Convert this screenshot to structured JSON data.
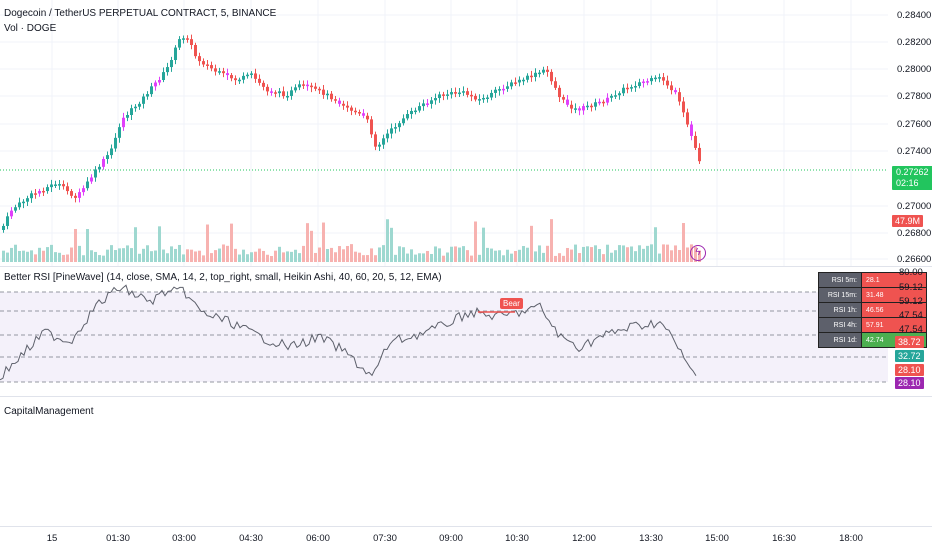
{
  "legend": {
    "symbol": "Dogecoin / TetherUS PERPETUAL CONTRACT, 5, BINANCE",
    "volume": "Vol · DOGE",
    "rsi": "Better RSI [PineWave] (14, close, SMA, 14, 2, top_right, small, Heikin Ashi, 40, 60, 20, 5, 12, EMA)",
    "capital": "CapitalManagement"
  },
  "price_axis": [
    "0.28400",
    "0.28200",
    "0.28000",
    "0.27800",
    "0.27600",
    "0.27400",
    "0.27000",
    "0.26800",
    "0.26600"
  ],
  "price_tag": {
    "value": "0.27262",
    "countdown": "02:16",
    "color": "#22c55e"
  },
  "volume_tag": {
    "value": "47.9M",
    "color": "#ef5350"
  },
  "rsi_axis": [
    "80.00",
    "59.12",
    "59.12",
    "47.54",
    "47.54"
  ],
  "rsi_tags": [
    {
      "value": "38.72",
      "color": "#ef5350"
    },
    {
      "value": "32.72",
      "color": "#26a69a"
    },
    {
      "value": "28.10",
      "color": "#ef5350"
    },
    {
      "value": "28.10",
      "color": "#9c27b0"
    }
  ],
  "bear_label": "Bear",
  "rsi_table": [
    {
      "key": "RSI 5m:",
      "value": "28.1",
      "color": "#ef5350"
    },
    {
      "key": "RSI 15m:",
      "value": "31.48",
      "color": "#ef5350"
    },
    {
      "key": "RSI 1h:",
      "value": "46.56",
      "color": "#ef5350"
    },
    {
      "key": "RSI 4h:",
      "value": "57.91",
      "color": "#ef5350"
    },
    {
      "key": "RSI 1d:",
      "value": "42.74",
      "color": "#4caf50"
    }
  ],
  "time_axis": [
    "15",
    "01:30",
    "03:00",
    "04:30",
    "06:00",
    "07:30",
    "09:00",
    "10:30",
    "12:00",
    "13:30",
    "15:00",
    "16:30",
    "18:00"
  ],
  "colors": {
    "up": "#26a69a",
    "down": "#ef5350",
    "magenta": "#e040fb",
    "grid": "#f0f3fa"
  }
}
